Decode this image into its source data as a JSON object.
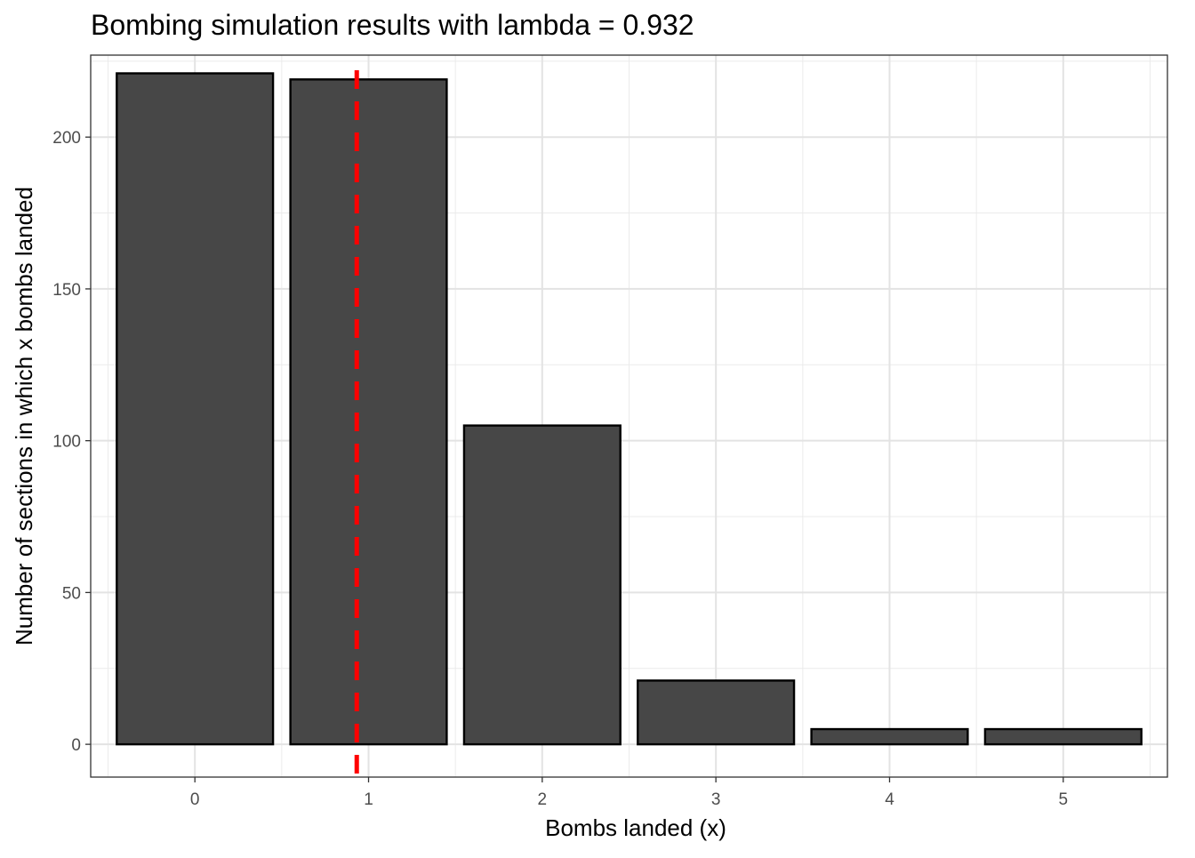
{
  "chart_data": {
    "type": "bar",
    "title": "Bombing simulation results with lambda = 0.932",
    "xlabel": "Bombs landed (x)",
    "ylabel": "Number of sections in which x bombs landed",
    "categories": [
      "0",
      "1",
      "2",
      "3",
      "4",
      "5"
    ],
    "values": [
      221,
      219,
      105,
      21,
      5,
      5
    ],
    "ylim": [
      0,
      225
    ],
    "yticks": [
      "0",
      "50",
      "100",
      "150",
      "200"
    ],
    "ytick_values": [
      0,
      50,
      100,
      150,
      200
    ],
    "reference_line": {
      "orientation": "vertical",
      "x": 0.932,
      "style": "dashed",
      "color": "#ff0000"
    },
    "bar_fill": "#474747",
    "bar_outline": "#000000",
    "grid": true,
    "legend": "none",
    "theme": "black-and-white"
  }
}
